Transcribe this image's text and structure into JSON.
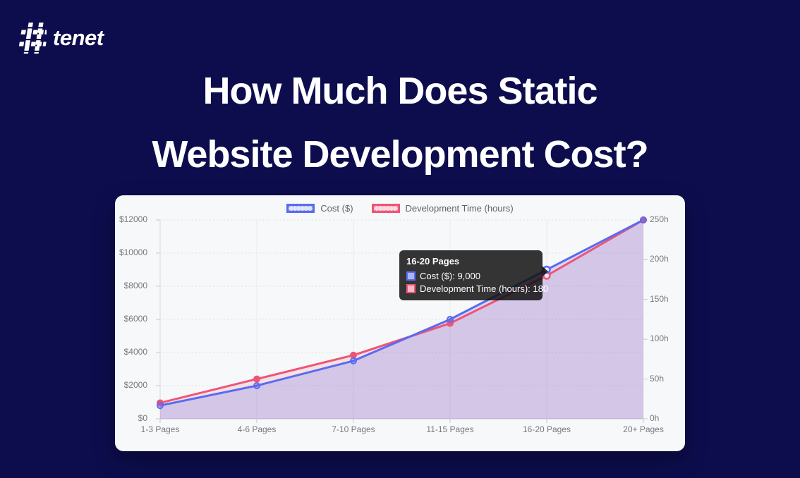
{
  "brand": {
    "name": "tenet"
  },
  "title": {
    "line1": "How Much Does Static",
    "line2": "Website Development Cost?"
  },
  "colors": {
    "background": "#0d0d4e",
    "card": "#f7f8f9",
    "cost_line": "#5a6bef",
    "time_line": "#ee5576"
  },
  "legend": [
    {
      "label": "Cost ($)",
      "swatch_style": "background:#dfe3fb;border-color:#5a6bef;color:#5a6bef"
    },
    {
      "label": "Development Time (hours)",
      "swatch_style": "background:#fbd9e0;border-color:#ee5576;color:#ee5576"
    }
  ],
  "tooltip": {
    "title": "16-20 Pages",
    "rows": [
      {
        "label": "Cost ($): 9,000",
        "swatch_style": "background:#aab4f6;border-color:#5a6bef"
      },
      {
        "label": "Development Time (hours): 180",
        "swatch_style": "background:#f6b9c6;border-color:#ee5576"
      }
    ]
  },
  "chart_data": {
    "type": "line",
    "categories": [
      "1-3 Pages",
      "4-6 Pages",
      "7-10 Pages",
      "11-15 Pages",
      "16-20 Pages",
      "20+ Pages"
    ],
    "series": [
      {
        "name": "Cost ($)",
        "axis": "left",
        "color": "#5a6bef",
        "fill": "rgba(90,107,239,0.22)",
        "point_fill": "rgba(90,107,239,0.35)",
        "hover_fill": "#eef0fd",
        "values": [
          800,
          2000,
          3500,
          6000,
          9000,
          12000
        ]
      },
      {
        "name": "Development Time (hours)",
        "axis": "right",
        "color": "#ee5576",
        "fill": "rgba(238,85,118,0.15)",
        "point_fill": "#ee5576",
        "hover_fill": "#fde4ea",
        "values": [
          20,
          50,
          80,
          120,
          180,
          250
        ]
      }
    ],
    "left_axis": {
      "ticks": [
        "$0",
        "$2000",
        "$4000",
        "$6000",
        "$8000",
        "$10000",
        "$12000"
      ],
      "min": 0,
      "max": 12000
    },
    "right_axis": {
      "ticks": [
        "0h",
        "50h",
        "100h",
        "150h",
        "200h",
        "250h"
      ],
      "min": 0,
      "max": 250
    },
    "hovered_index": 4,
    "grid": "on",
    "legend_position": "top",
    "title": "How Much Does Static Website Development Cost?"
  }
}
